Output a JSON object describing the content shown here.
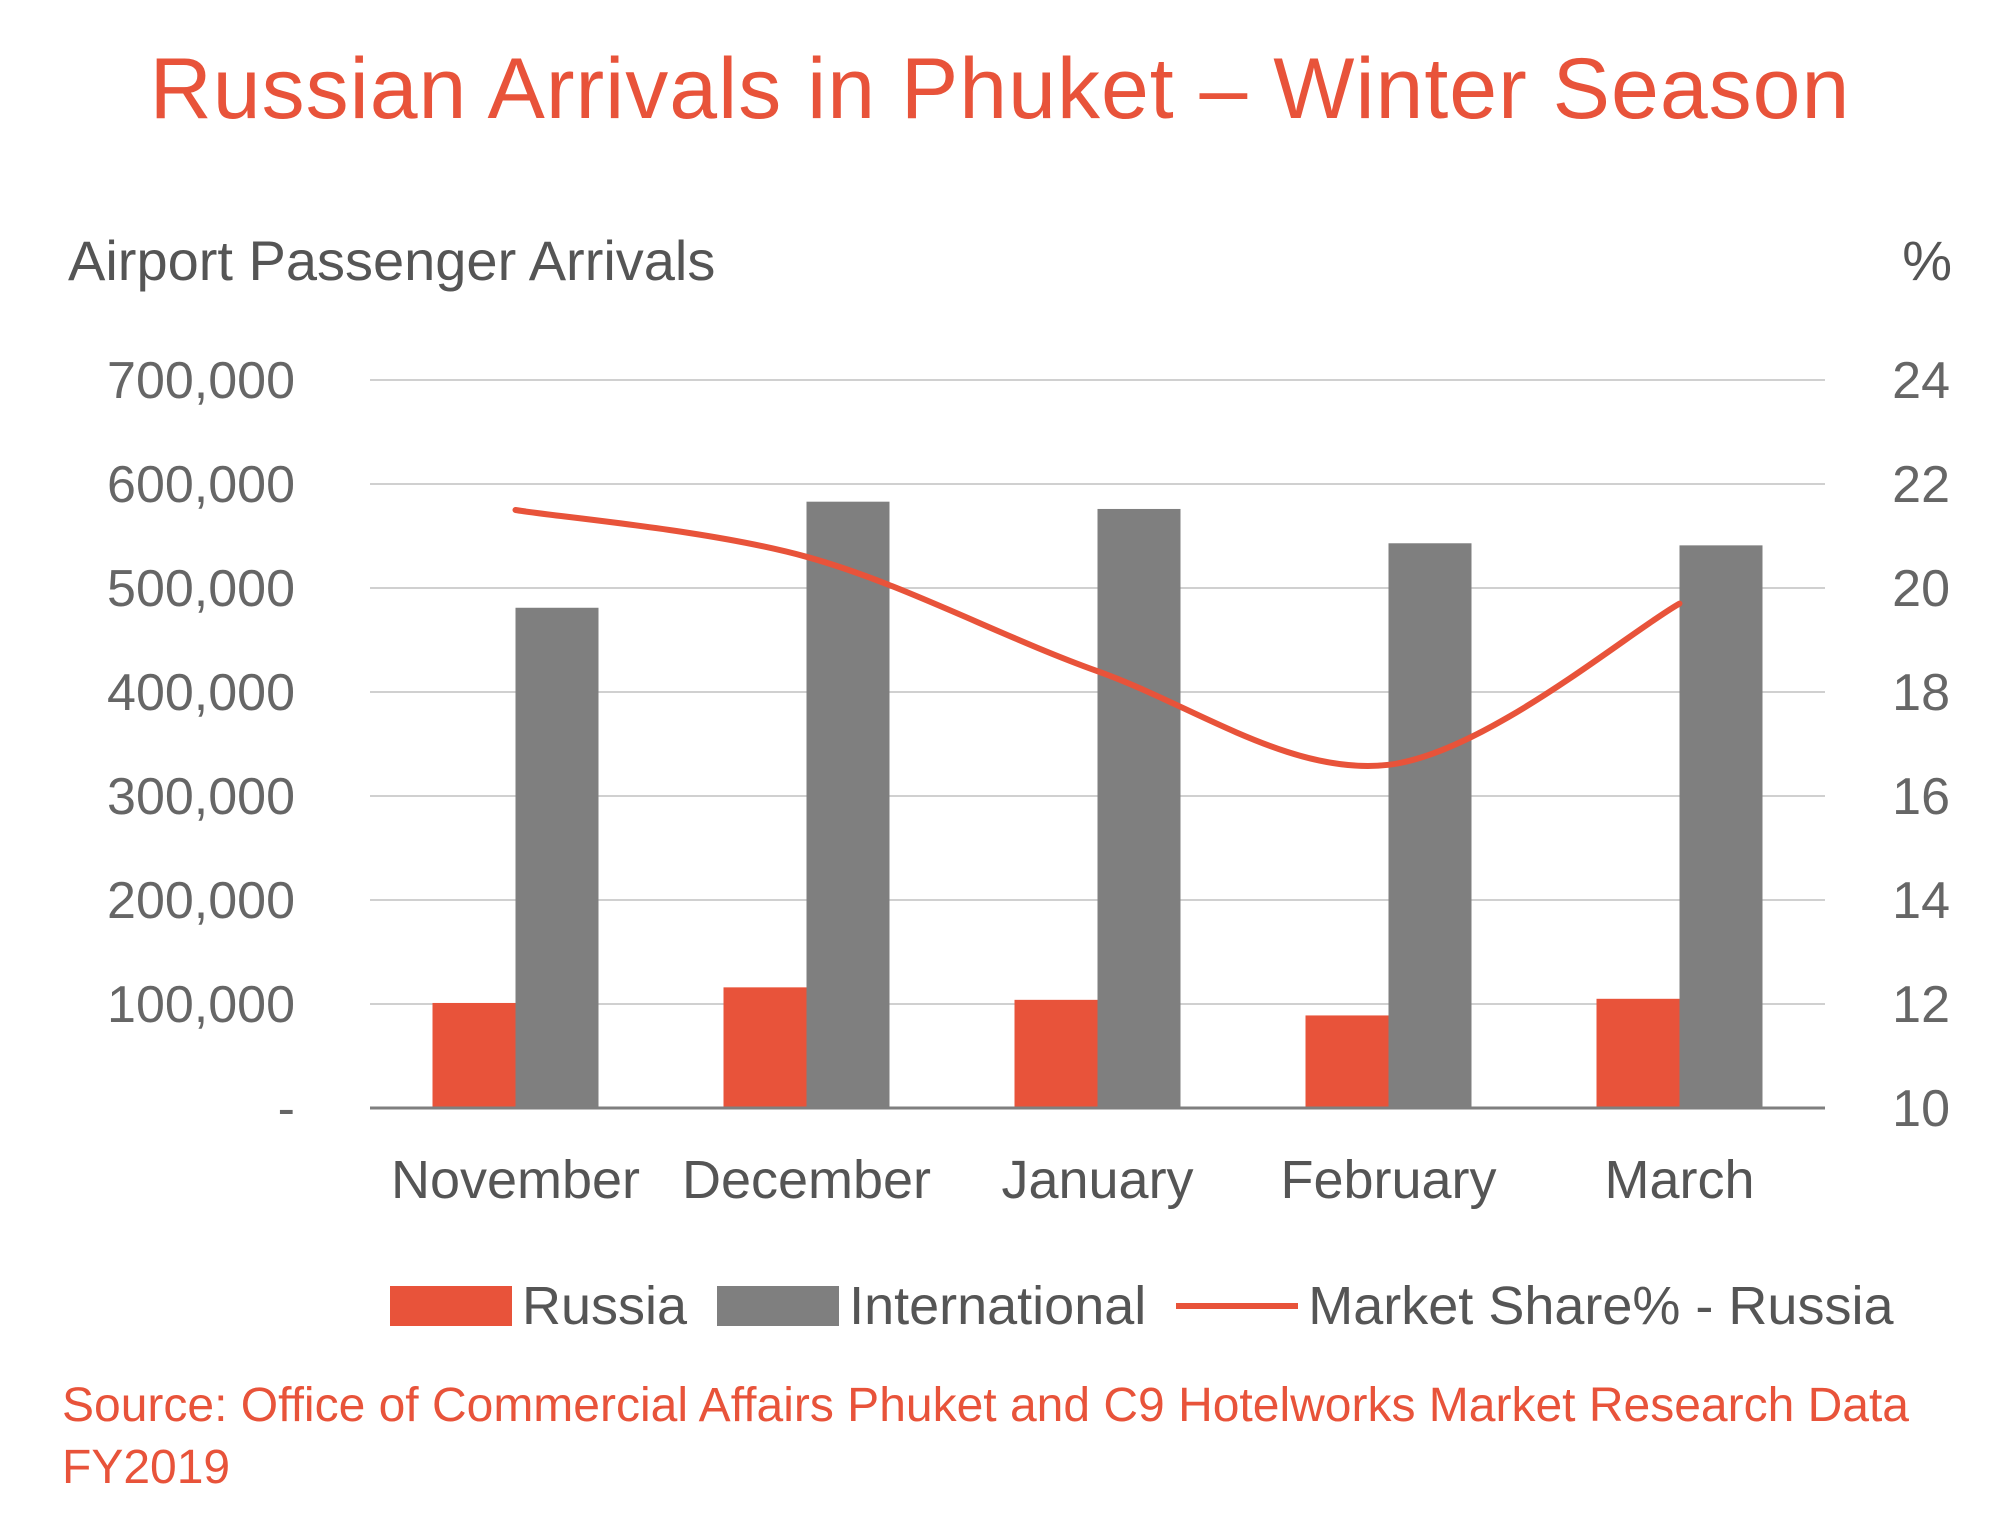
{
  "title": "Russian Arrivals in Phuket – Winter Season",
  "y_axis_label": "Airport Passenger Arrivals",
  "y2_axis_label": "%",
  "y_ticks": [
    "-",
    "100,000",
    "200,000",
    "300,000",
    "400,000",
    "500,000",
    "600,000",
    "700,000"
  ],
  "y2_ticks": [
    "10",
    "12",
    "14",
    "16",
    "18",
    "20",
    "22",
    "24"
  ],
  "legend": {
    "russia": "Russia",
    "international": "International",
    "market_share": "Market Share% - Russia"
  },
  "source": "Source: Office of Commercial Affairs Phuket and C9 Hotelworks Market Research Data FY2019",
  "colors": {
    "russia": "#e8533a",
    "international": "#7f7f7f",
    "line": "#e8533a",
    "title": "#e8533a",
    "grid": "#d0d0d0"
  },
  "chart_data": {
    "type": "bar",
    "title": "Russian Arrivals in Phuket – Winter Season",
    "categories": [
      "November",
      "December",
      "January",
      "February",
      "March"
    ],
    "series": [
      {
        "name": "Russia",
        "type": "bar",
        "axis": "left",
        "values": [
          101000,
          116000,
          104000,
          89000,
          105000
        ]
      },
      {
        "name": "International",
        "type": "bar",
        "axis": "left",
        "values": [
          481000,
          583000,
          576000,
          543000,
          541000
        ]
      },
      {
        "name": "Market Share% - Russia",
        "type": "line",
        "axis": "right",
        "values": [
          21.5,
          20.6,
          18.4,
          16.6,
          19.7
        ]
      }
    ],
    "xlabel": "",
    "ylabel": "Airport Passenger Arrivals",
    "y2label": "%",
    "ylim": [
      0,
      700000
    ],
    "y2lim": [
      10,
      24
    ],
    "grid": true,
    "legend_position": "bottom"
  }
}
